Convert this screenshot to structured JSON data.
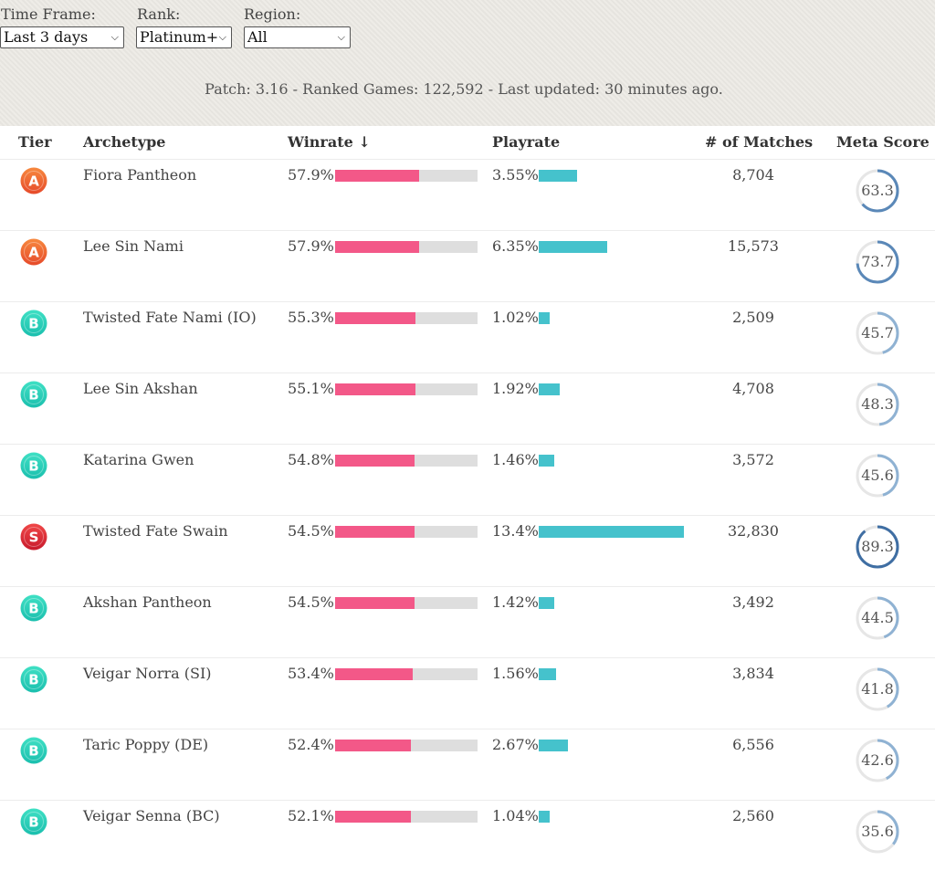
{
  "filters": {
    "time_frame": {
      "label": "Time Frame:",
      "value": "Last 3 days"
    },
    "rank": {
      "label": "Rank:",
      "value": "Platinum+"
    },
    "region": {
      "label": "Region:",
      "value": "All"
    }
  },
  "patch_info": "Patch: 3.16 - Ranked Games: 122,592 - Last updated: 30 minutes ago.",
  "columns": {
    "tier": "Tier",
    "archetype": "Archetype",
    "winrate": "Winrate ↓",
    "playrate": "Playrate",
    "matches": "# of Matches",
    "meta_score": "Meta Score"
  },
  "tier_colors": {
    "A": {
      "from": "#f7883e",
      "to": "#e64a2a"
    },
    "B": {
      "from": "#3fe0c4",
      "to": "#1bbfae"
    },
    "S": {
      "from": "#f04848",
      "to": "#c81a2c"
    }
  },
  "accent_colors": {
    "winrate": "#f35888",
    "playrate": "#45c2cc",
    "meta_ring": "#5f8fbd",
    "ring_track": "#e6e6e6"
  },
  "rows": [
    {
      "tier": "A",
      "archetype": "Fiora Pantheon",
      "winrate": "57.9%",
      "winrate_value": 0.579,
      "playrate": "3.55%",
      "playrate_value": 3.55,
      "matches": "8,704",
      "meta_score": "63.3",
      "meta_value": 63.3
    },
    {
      "tier": "A",
      "archetype": "Lee Sin Nami",
      "winrate": "57.9%",
      "winrate_value": 0.579,
      "playrate": "6.35%",
      "playrate_value": 6.35,
      "matches": "15,573",
      "meta_score": "73.7",
      "meta_value": 73.7
    },
    {
      "tier": "B",
      "archetype": "Twisted Fate Nami (IO)",
      "winrate": "55.3%",
      "winrate_value": 0.553,
      "playrate": "1.02%",
      "playrate_value": 1.02,
      "matches": "2,509",
      "meta_score": "45.7",
      "meta_value": 45.7
    },
    {
      "tier": "B",
      "archetype": "Lee Sin Akshan",
      "winrate": "55.1%",
      "winrate_value": 0.551,
      "playrate": "1.92%",
      "playrate_value": 1.92,
      "matches": "4,708",
      "meta_score": "48.3",
      "meta_value": 48.3
    },
    {
      "tier": "B",
      "archetype": "Katarina Gwen",
      "winrate": "54.8%",
      "winrate_value": 0.548,
      "playrate": "1.46%",
      "playrate_value": 1.46,
      "matches": "3,572",
      "meta_score": "45.6",
      "meta_value": 45.6
    },
    {
      "tier": "S",
      "archetype": "Twisted Fate Swain",
      "winrate": "54.5%",
      "winrate_value": 0.545,
      "playrate": "13.4%",
      "playrate_value": 13.4,
      "matches": "32,830",
      "meta_score": "89.3",
      "meta_value": 89.3
    },
    {
      "tier": "B",
      "archetype": "Akshan Pantheon",
      "winrate": "54.5%",
      "winrate_value": 0.545,
      "playrate": "1.42%",
      "playrate_value": 1.42,
      "matches": "3,492",
      "meta_score": "44.5",
      "meta_value": 44.5
    },
    {
      "tier": "B",
      "archetype": "Veigar Norra (SI)",
      "winrate": "53.4%",
      "winrate_value": 0.534,
      "playrate": "1.56%",
      "playrate_value": 1.56,
      "matches": "3,834",
      "meta_score": "41.8",
      "meta_value": 41.8
    },
    {
      "tier": "B",
      "archetype": "Taric Poppy (DE)",
      "winrate": "52.4%",
      "winrate_value": 0.524,
      "playrate": "2.67%",
      "playrate_value": 2.67,
      "matches": "6,556",
      "meta_score": "42.6",
      "meta_value": 42.6
    },
    {
      "tier": "B",
      "archetype": "Veigar Senna (BC)",
      "winrate": "52.1%",
      "winrate_value": 0.521,
      "playrate": "1.04%",
      "playrate_value": 1.04,
      "matches": "2,560",
      "meta_score": "35.6",
      "meta_value": 35.6
    }
  ]
}
